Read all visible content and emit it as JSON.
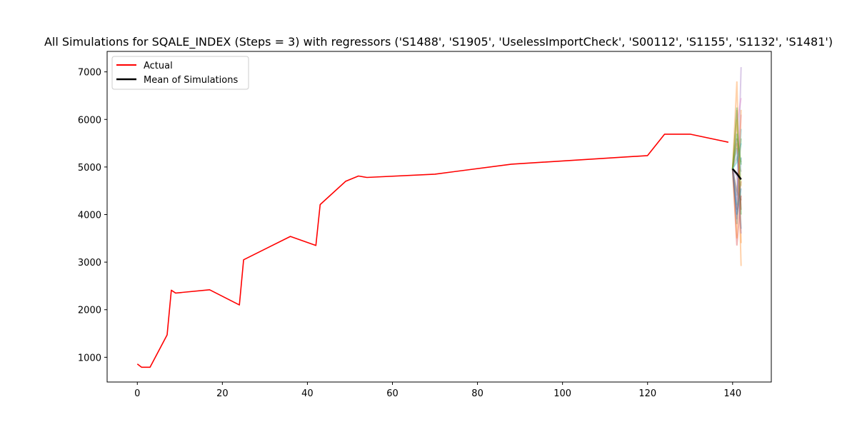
{
  "chart_data": {
    "type": "line",
    "title": "All Simulations for SQALE_INDEX (Steps = 3) with regressors ('S1488', 'S1905', 'UselessImportCheck', 'S00112', 'S1155', 'S1132', 'S1481')",
    "xlabel": "",
    "ylabel": "",
    "xlim": [
      -7.1,
      149.1
    ],
    "ylim": [
      480,
      7430
    ],
    "xticks": [
      0,
      20,
      40,
      60,
      80,
      100,
      120,
      140
    ],
    "yticks": [
      1000,
      2000,
      3000,
      4000,
      5000,
      6000,
      7000
    ],
    "legend": {
      "placement": "top-left",
      "entries": [
        "Actual",
        "Mean of Simulations"
      ]
    },
    "grid": false,
    "series": [
      {
        "name": "Actual",
        "color": "#ff0000",
        "x": [
          0,
          1,
          3,
          7,
          8,
          9,
          17,
          24,
          25,
          36,
          42,
          43,
          49,
          52,
          54,
          70,
          88,
          120,
          124,
          130,
          139
        ],
        "y": [
          860,
          790,
          790,
          1470,
          2410,
          2350,
          2420,
          2100,
          3050,
          3540,
          3350,
          4210,
          4700,
          4810,
          4780,
          4850,
          5060,
          5240,
          5690,
          5690,
          5520
        ]
      },
      {
        "name": "Mean of Simulations",
        "color": "#000000",
        "x": [
          140,
          141,
          142
        ],
        "y": [
          4960,
          4860,
          4740
        ]
      }
    ],
    "simulations": {
      "x": [
        140,
        141,
        142
      ],
      "alpha": 0.35,
      "lines": [
        {
          "color": "#1f77b4",
          "y": [
            4960,
            5400,
            3700
          ]
        },
        {
          "color": "#ff7f0e",
          "y": [
            4960,
            6800,
            3400
          ]
        },
        {
          "color": "#2ca02c",
          "y": [
            4960,
            4400,
            5600
          ]
        },
        {
          "color": "#d62728",
          "y": [
            4960,
            4100,
            4700
          ]
        },
        {
          "color": "#9467bd",
          "y": [
            4960,
            3900,
            7100
          ]
        },
        {
          "color": "#8c564b",
          "y": [
            4960,
            4500,
            4300
          ]
        },
        {
          "color": "#e377c2",
          "y": [
            4960,
            5900,
            6450
          ]
        },
        {
          "color": "#7f7f7f",
          "y": [
            4960,
            5200,
            4900
          ]
        },
        {
          "color": "#bcbd22",
          "y": [
            4960,
            5500,
            5100
          ]
        },
        {
          "color": "#17becf",
          "y": [
            4960,
            4200,
            5800
          ]
        },
        {
          "color": "#ff7f0e",
          "y": [
            4960,
            6200,
            2920
          ]
        },
        {
          "color": "#1f77b4",
          "y": [
            4960,
            3800,
            5200
          ]
        },
        {
          "color": "#2ca02c",
          "y": [
            4960,
            6250,
            4000
          ]
        },
        {
          "color": "#d62728",
          "y": [
            4960,
            3350,
            4400
          ]
        },
        {
          "color": "#9467bd",
          "y": [
            4960,
            4800,
            3600
          ]
        },
        {
          "color": "#8c564b",
          "y": [
            4960,
            5600,
            4100
          ]
        },
        {
          "color": "#e377c2",
          "y": [
            4960,
            4300,
            6100
          ]
        },
        {
          "color": "#bcbd22",
          "y": [
            4960,
            6000,
            4600
          ]
        },
        {
          "color": "#17becf",
          "y": [
            4960,
            5100,
            5500
          ]
        },
        {
          "color": "#ff7f0e",
          "y": [
            4960,
            3500,
            6200
          ]
        },
        {
          "color": "#2ca02c",
          "y": [
            4960,
            5700,
            5050
          ]
        },
        {
          "color": "#1f77b4",
          "y": [
            4960,
            4000,
            4550
          ]
        }
      ]
    }
  }
}
